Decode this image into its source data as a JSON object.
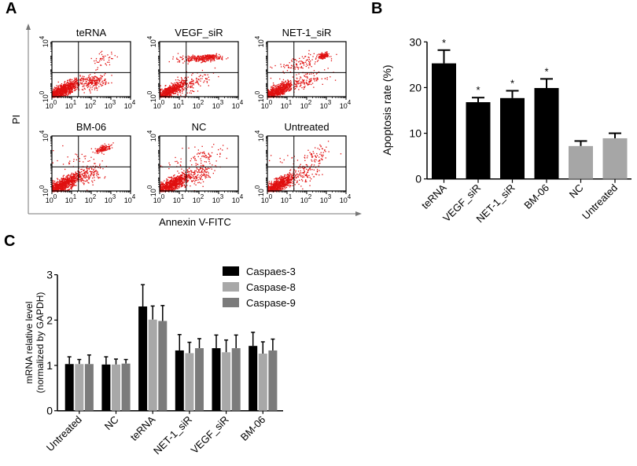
{
  "figure": {
    "panel_labels": [
      "A",
      "B",
      "C"
    ]
  },
  "chart_data": [
    {
      "panel": "A",
      "type": "scatter",
      "title": "",
      "xlabel": "Annexin V-FITC",
      "ylabel": "PI",
      "x_scale": "log",
      "y_scale": "log",
      "xlim": [
        1,
        10000
      ],
      "ylim": [
        1,
        10000
      ],
      "x_ticks": [
        "10^0",
        "10^1",
        "10^2",
        "10^3",
        "10^4"
      ],
      "y_ticks": [
        "10^0",
        "10^4"
      ],
      "gate_log10": {
        "x": 1.35,
        "y": 1.75
      },
      "dot_color": "#e01010",
      "plots": [
        {
          "name": "teRNA",
          "populations": [
            {
              "cx": 0.5,
              "cy": 0.45,
              "sx": 0.45,
              "sy": 0.4,
              "n": 900,
              "diag": 0.8
            },
            {
              "cx": 2.1,
              "cy": 1.1,
              "sx": 0.35,
              "sy": 0.25,
              "n": 200,
              "diag": 0.3
            },
            {
              "cx": 2.6,
              "cy": 2.7,
              "sx": 0.35,
              "sy": 0.3,
              "n": 45,
              "diag": 0.4
            }
          ]
        },
        {
          "name": "VEGF_siR",
          "populations": [
            {
              "cx": 0.45,
              "cy": 0.4,
              "sx": 0.4,
              "sy": 0.35,
              "n": 650,
              "diag": 0.8
            },
            {
              "cx": 1.6,
              "cy": 1.0,
              "sx": 0.5,
              "sy": 0.5,
              "n": 120,
              "diag": 0.6
            },
            {
              "cx": 2.0,
              "cy": 2.8,
              "sx": 0.55,
              "sy": 0.12,
              "n": 230,
              "diag": 0.2
            },
            {
              "cx": 2.5,
              "cy": 2.95,
              "sx": 0.2,
              "sy": 0.1,
              "n": 100,
              "diag": 0.3
            }
          ]
        },
        {
          "name": "NET-1_siR",
          "populations": [
            {
              "cx": 0.45,
              "cy": 0.4,
              "sx": 0.42,
              "sy": 0.38,
              "n": 750,
              "diag": 0.8
            },
            {
              "cx": 2.0,
              "cy": 1.2,
              "sx": 0.45,
              "sy": 0.3,
              "n": 120,
              "diag": 0.5
            },
            {
              "cx": 1.6,
              "cy": 2.4,
              "sx": 0.6,
              "sy": 0.35,
              "n": 110,
              "diag": 0.5
            },
            {
              "cx": 2.85,
              "cy": 3.0,
              "sx": 0.15,
              "sy": 0.12,
              "n": 120,
              "diag": 0.4
            }
          ]
        },
        {
          "name": "BM-06",
          "populations": [
            {
              "cx": 0.5,
              "cy": 0.45,
              "sx": 0.45,
              "sy": 0.4,
              "n": 900,
              "diag": 0.8
            },
            {
              "cx": 1.9,
              "cy": 1.3,
              "sx": 0.4,
              "sy": 0.4,
              "n": 140,
              "diag": 0.5
            },
            {
              "cx": 1.2,
              "cy": 2.3,
              "sx": 0.6,
              "sy": 0.4,
              "n": 35,
              "diag": 0.2
            },
            {
              "cx": 2.6,
              "cy": 3.1,
              "sx": 0.2,
              "sy": 0.15,
              "n": 140,
              "diag": 0.6
            }
          ]
        },
        {
          "name": "NC",
          "populations": [
            {
              "cx": 0.55,
              "cy": 0.45,
              "sx": 0.45,
              "sy": 0.4,
              "n": 900,
              "diag": 0.8
            },
            {
              "cx": 1.9,
              "cy": 1.2,
              "sx": 0.45,
              "sy": 0.45,
              "n": 150,
              "diag": 0.5
            },
            {
              "cx": 2.4,
              "cy": 2.6,
              "sx": 0.4,
              "sy": 0.35,
              "n": 60,
              "diag": 0.5
            },
            {
              "cx": 1.0,
              "cy": 2.2,
              "sx": 0.5,
              "sy": 0.4,
              "n": 25,
              "diag": 0.2
            }
          ]
        },
        {
          "name": "Untreated",
          "populations": [
            {
              "cx": 0.5,
              "cy": 0.45,
              "sx": 0.42,
              "sy": 0.38,
              "n": 800,
              "diag": 0.8
            },
            {
              "cx": 1.9,
              "cy": 1.3,
              "sx": 0.45,
              "sy": 0.5,
              "n": 110,
              "diag": 0.5
            },
            {
              "cx": 2.5,
              "cy": 2.6,
              "sx": 0.4,
              "sy": 0.4,
              "n": 60,
              "diag": 0.5
            },
            {
              "cx": 0.9,
              "cy": 2.4,
              "sx": 0.4,
              "sy": 0.3,
              "n": 12,
              "diag": 0.1
            }
          ]
        }
      ]
    },
    {
      "panel": "B",
      "type": "bar",
      "title": "",
      "xlabel": "",
      "ylabel": "Apoptosis rate (%)",
      "ylim": [
        0,
        30
      ],
      "y_ticks": [
        0,
        10,
        20,
        30
      ],
      "categories": [
        "teRNA",
        "VEGF_siR",
        "NET-1_siR",
        "BM-06",
        "NC",
        "Untreated"
      ],
      "values": [
        25.3,
        16.8,
        17.7,
        19.9,
        7.2,
        8.9
      ],
      "errors": [
        2.9,
        1.0,
        1.6,
        2.0,
        1.1,
        1.1
      ],
      "significance": [
        "*",
        "*",
        "*",
        "*",
        "",
        ""
      ],
      "colors": [
        "#000000",
        "#000000",
        "#000000",
        "#000000",
        "#a6a6a6",
        "#a6a6a6"
      ]
    },
    {
      "panel": "C",
      "type": "bar",
      "title": "",
      "xlabel": "",
      "ylabel": "mRNA relative level",
      "ylabel2": "(normalized by GAPDH)",
      "ylim": [
        0,
        3
      ],
      "y_ticks": [
        0,
        1,
        2,
        3
      ],
      "legend_position": "top-right",
      "categories": [
        "Untreated",
        "NC",
        "teRNA",
        "NET-1_siR",
        "VEGF_siR",
        "BM-06"
      ],
      "series": [
        {
          "name": "Caspaes-3",
          "color": "#000000",
          "values": [
            1.03,
            1.02,
            2.3,
            1.33,
            1.38,
            1.43
          ],
          "errors": [
            0.16,
            0.17,
            0.48,
            0.35,
            0.29,
            0.3
          ]
        },
        {
          "name": "Caspase-8",
          "color": "#a8a8a8",
          "values": [
            1.03,
            1.02,
            2.01,
            1.27,
            1.29,
            1.26
          ],
          "errors": [
            0.1,
            0.12,
            0.3,
            0.24,
            0.27,
            0.26
          ]
        },
        {
          "name": "Caspase-9",
          "color": "#7b7b7b",
          "values": [
            1.03,
            1.04,
            1.98,
            1.38,
            1.38,
            1.33
          ],
          "errors": [
            0.2,
            0.09,
            0.34,
            0.21,
            0.29,
            0.25
          ]
        }
      ]
    }
  ]
}
